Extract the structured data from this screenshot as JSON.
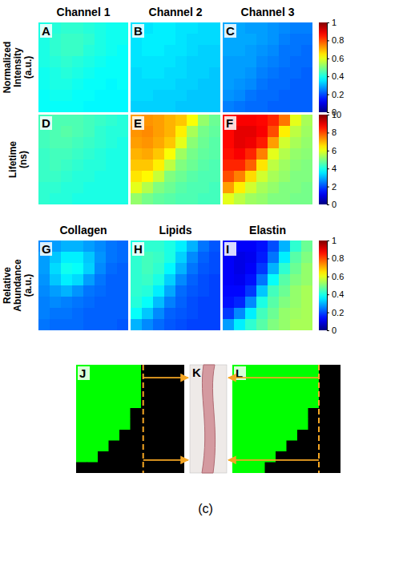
{
  "chart_data": [
    {
      "type": "heatmap",
      "title": "Channel 1",
      "label": "A",
      "zlim": [
        0,
        1
      ],
      "tick_labels": false,
      "z": [
        [
          0.4,
          0.41,
          0.42,
          0.42,
          0.41,
          0.4,
          0.39,
          0.39
        ],
        [
          0.4,
          0.42,
          0.43,
          0.43,
          0.42,
          0.4,
          0.39,
          0.39
        ],
        [
          0.4,
          0.42,
          0.43,
          0.43,
          0.41,
          0.4,
          0.39,
          0.38
        ],
        [
          0.4,
          0.41,
          0.42,
          0.41,
          0.4,
          0.39,
          0.38,
          0.38
        ],
        [
          0.39,
          0.4,
          0.41,
          0.4,
          0.39,
          0.38,
          0.38,
          0.38
        ],
        [
          0.39,
          0.4,
          0.4,
          0.39,
          0.38,
          0.38,
          0.37,
          0.38
        ],
        [
          0.38,
          0.39,
          0.39,
          0.38,
          0.38,
          0.37,
          0.37,
          0.37
        ],
        [
          0.38,
          0.38,
          0.38,
          0.38,
          0.37,
          0.37,
          0.37,
          0.37
        ]
      ]
    },
    {
      "type": "heatmap",
      "title": "Channel 2",
      "label": "B",
      "zlim": [
        0,
        1
      ],
      "tick_labels": false,
      "z": [
        [
          0.35,
          0.35,
          0.36,
          0.36,
          0.35,
          0.35,
          0.34,
          0.34
        ],
        [
          0.35,
          0.36,
          0.36,
          0.36,
          0.35,
          0.34,
          0.34,
          0.34
        ],
        [
          0.35,
          0.36,
          0.36,
          0.35,
          0.35,
          0.34,
          0.33,
          0.33
        ],
        [
          0.35,
          0.35,
          0.35,
          0.35,
          0.34,
          0.33,
          0.33,
          0.33
        ],
        [
          0.34,
          0.35,
          0.35,
          0.34,
          0.34,
          0.33,
          0.33,
          0.32
        ],
        [
          0.34,
          0.34,
          0.34,
          0.34,
          0.33,
          0.33,
          0.32,
          0.32
        ],
        [
          0.34,
          0.34,
          0.33,
          0.33,
          0.33,
          0.32,
          0.32,
          0.32
        ],
        [
          0.33,
          0.33,
          0.33,
          0.33,
          0.32,
          0.32,
          0.32,
          0.32
        ]
      ]
    },
    {
      "type": "heatmap",
      "title": "Channel 3",
      "label": "C",
      "zlim": [
        0,
        1
      ],
      "zticks": [
        0,
        0.2,
        0.4,
        0.6,
        0.8,
        1
      ],
      "tick_labels": false,
      "z": [
        [
          0.29,
          0.29,
          0.28,
          0.28,
          0.27,
          0.26,
          0.25,
          0.25
        ],
        [
          0.29,
          0.29,
          0.29,
          0.28,
          0.27,
          0.25,
          0.24,
          0.24
        ],
        [
          0.29,
          0.29,
          0.28,
          0.27,
          0.26,
          0.24,
          0.24,
          0.23
        ],
        [
          0.28,
          0.28,
          0.28,
          0.26,
          0.25,
          0.24,
          0.23,
          0.23
        ],
        [
          0.28,
          0.28,
          0.27,
          0.25,
          0.24,
          0.23,
          0.23,
          0.22
        ],
        [
          0.28,
          0.27,
          0.26,
          0.24,
          0.23,
          0.23,
          0.22,
          0.22
        ],
        [
          0.27,
          0.26,
          0.24,
          0.23,
          0.23,
          0.22,
          0.22,
          0.22
        ],
        [
          0.25,
          0.24,
          0.23,
          0.23,
          0.22,
          0.22,
          0.22,
          0.22
        ]
      ]
    },
    {
      "type": "heatmap",
      "label": "D",
      "zlim": [
        0,
        10
      ],
      "tick_labels": false,
      "z": [
        [
          4.4,
          4.5,
          4.5,
          4.5,
          4.4,
          4.3,
          4.2,
          4.1
        ],
        [
          4.4,
          4.5,
          4.6,
          4.5,
          4.4,
          4.2,
          4.1,
          4.1
        ],
        [
          4.4,
          4.5,
          4.5,
          4.4,
          4.3,
          4.2,
          4.1,
          4.0
        ],
        [
          4.3,
          4.4,
          4.4,
          4.3,
          4.2,
          4.1,
          4.0,
          4.0
        ],
        [
          4.3,
          4.4,
          4.3,
          4.2,
          4.1,
          4.1,
          4.0,
          4.0
        ],
        [
          4.3,
          4.3,
          4.2,
          4.1,
          4.1,
          4.0,
          4.0,
          4.0
        ],
        [
          4.2,
          4.2,
          4.1,
          4.1,
          4.0,
          4.0,
          4.0,
          4.0
        ],
        [
          4.2,
          4.1,
          4.1,
          4.0,
          4.0,
          4.0,
          4.0,
          4.0
        ]
      ]
    },
    {
      "type": "heatmap",
      "label": "E",
      "zlim": [
        0,
        10
      ],
      "tick_labels": false,
      "z": [
        [
          7.2,
          7.3,
          7.2,
          7.0,
          6.8,
          6.2,
          5.2,
          4.8
        ],
        [
          7.3,
          7.4,
          7.2,
          7.0,
          6.4,
          5.4,
          4.9,
          4.7
        ],
        [
          7.2,
          7.3,
          7.1,
          6.8,
          6.0,
          5.1,
          4.8,
          4.6
        ],
        [
          7.0,
          7.1,
          6.8,
          6.2,
          5.3,
          4.9,
          4.7,
          4.6
        ],
        [
          6.8,
          6.8,
          6.4,
          5.6,
          5.0,
          4.8,
          4.6,
          4.5
        ],
        [
          6.5,
          6.3,
          5.7,
          5.0,
          4.8,
          4.6,
          4.5,
          4.5
        ],
        [
          6.0,
          5.5,
          5.0,
          4.8,
          4.6,
          4.5,
          4.5,
          4.4
        ],
        [
          5.2,
          4.9,
          4.7,
          4.6,
          4.5,
          4.5,
          4.4,
          4.4
        ]
      ]
    },
    {
      "type": "heatmap",
      "label": "F",
      "zlim": [
        0,
        10
      ],
      "zticks": [
        0,
        2,
        4,
        6,
        8,
        10
      ],
      "tick_labels": false,
      "z": [
        [
          8.6,
          8.8,
          8.8,
          8.7,
          8.4,
          7.6,
          6.0,
          5.4
        ],
        [
          8.7,
          9.0,
          9.0,
          8.8,
          8.0,
          6.4,
          5.6,
          5.3
        ],
        [
          8.7,
          9.0,
          8.9,
          8.5,
          7.2,
          5.8,
          5.4,
          5.2
        ],
        [
          8.6,
          8.8,
          8.4,
          7.5,
          6.0,
          5.5,
          5.2,
          5.1
        ],
        [
          8.4,
          8.4,
          7.8,
          6.5,
          5.6,
          5.3,
          5.1,
          5.0
        ],
        [
          8.0,
          7.5,
          6.6,
          5.8,
          5.4,
          5.2,
          5.0,
          5.0
        ],
        [
          7.2,
          6.4,
          5.8,
          5.4,
          5.2,
          5.0,
          5.0,
          4.9
        ],
        [
          6.0,
          5.6,
          5.3,
          5.2,
          5.0,
          5.0,
          4.9,
          4.9
        ]
      ]
    },
    {
      "type": "heatmap",
      "title": "Collagen",
      "label": "G",
      "zlim": [
        0,
        1
      ],
      "tick_labels": false,
      "z": [
        [
          0.26,
          0.28,
          0.3,
          0.3,
          0.28,
          0.26,
          0.24,
          0.23
        ],
        [
          0.28,
          0.32,
          0.36,
          0.36,
          0.32,
          0.27,
          0.24,
          0.23
        ],
        [
          0.28,
          0.34,
          0.39,
          0.38,
          0.33,
          0.26,
          0.23,
          0.22
        ],
        [
          0.27,
          0.32,
          0.36,
          0.34,
          0.28,
          0.24,
          0.22,
          0.22
        ],
        [
          0.26,
          0.28,
          0.3,
          0.27,
          0.24,
          0.23,
          0.22,
          0.22
        ],
        [
          0.25,
          0.26,
          0.25,
          0.24,
          0.23,
          0.22,
          0.22,
          0.22
        ],
        [
          0.25,
          0.24,
          0.24,
          0.23,
          0.22,
          0.22,
          0.22,
          0.22
        ],
        [
          0.24,
          0.23,
          0.23,
          0.23,
          0.22,
          0.22,
          0.22,
          0.21
        ]
      ]
    },
    {
      "type": "heatmap",
      "title": "Lipids",
      "label": "H",
      "zlim": [
        0,
        1
      ],
      "tick_labels": false,
      "z": [
        [
          0.4,
          0.42,
          0.42,
          0.4,
          0.36,
          0.3,
          0.24,
          0.21
        ],
        [
          0.42,
          0.44,
          0.43,
          0.4,
          0.33,
          0.26,
          0.22,
          0.2
        ],
        [
          0.42,
          0.44,
          0.42,
          0.37,
          0.3,
          0.24,
          0.21,
          0.2
        ],
        [
          0.42,
          0.43,
          0.4,
          0.33,
          0.26,
          0.22,
          0.2,
          0.19
        ],
        [
          0.42,
          0.41,
          0.36,
          0.29,
          0.23,
          0.21,
          0.2,
          0.19
        ],
        [
          0.41,
          0.38,
          0.31,
          0.25,
          0.22,
          0.2,
          0.19,
          0.19
        ],
        [
          0.38,
          0.32,
          0.26,
          0.22,
          0.21,
          0.2,
          0.19,
          0.19
        ],
        [
          0.3,
          0.26,
          0.23,
          0.21,
          0.2,
          0.19,
          0.19,
          0.19
        ]
      ]
    },
    {
      "type": "heatmap",
      "title": "Elastin",
      "label": "I",
      "zlim": [
        0,
        1
      ],
      "zticks": [
        0,
        0.2,
        0.4,
        0.6,
        0.8,
        1
      ],
      "tick_labels": false,
      "z": [
        [
          0.14,
          0.12,
          0.12,
          0.14,
          0.2,
          0.3,
          0.42,
          0.48
        ],
        [
          0.12,
          0.1,
          0.11,
          0.15,
          0.24,
          0.36,
          0.46,
          0.5
        ],
        [
          0.12,
          0.1,
          0.12,
          0.18,
          0.3,
          0.42,
          0.48,
          0.52
        ],
        [
          0.12,
          0.11,
          0.14,
          0.24,
          0.38,
          0.46,
          0.5,
          0.52
        ],
        [
          0.13,
          0.13,
          0.18,
          0.32,
          0.44,
          0.48,
          0.52,
          0.54
        ],
        [
          0.14,
          0.16,
          0.26,
          0.4,
          0.46,
          0.5,
          0.52,
          0.54
        ],
        [
          0.18,
          0.26,
          0.36,
          0.44,
          0.48,
          0.52,
          0.53,
          0.54
        ],
        [
          0.28,
          0.36,
          0.42,
          0.46,
          0.5,
          0.52,
          0.54,
          0.54
        ]
      ]
    },
    {
      "type": "heatmap",
      "label": "J",
      "color": "#00ff00",
      "tick_labels": false,
      "z": [
        [
          1,
          1,
          1,
          1,
          1,
          1,
          0,
          0,
          0,
          0
        ],
        [
          1,
          1,
          1,
          1,
          1,
          1,
          0,
          0,
          0,
          0
        ],
        [
          1,
          1,
          1,
          1,
          1,
          1,
          0,
          0,
          0,
          0
        ],
        [
          1,
          1,
          1,
          1,
          1,
          1,
          0,
          0,
          0,
          0
        ],
        [
          1,
          1,
          1,
          1,
          1,
          0,
          0,
          0,
          0,
          0
        ],
        [
          1,
          1,
          1,
          1,
          1,
          0,
          0,
          0,
          0,
          0
        ],
        [
          1,
          1,
          1,
          1,
          0,
          0,
          0,
          0,
          0,
          0
        ],
        [
          1,
          1,
          1,
          0,
          0,
          0,
          0,
          0,
          0,
          0
        ],
        [
          1,
          1,
          0,
          0,
          0,
          0,
          0,
          0,
          0,
          0
        ],
        [
          0,
          0,
          0,
          0,
          0,
          0,
          0,
          0,
          0,
          0
        ]
      ]
    },
    {
      "type": "heatmap",
      "label": "L",
      "color": "#00ff00",
      "tick_labels": false,
      "z": [
        [
          1,
          1,
          1,
          1,
          1,
          1,
          1,
          1,
          0,
          0
        ],
        [
          1,
          1,
          1,
          1,
          1,
          1,
          1,
          1,
          0,
          0
        ],
        [
          1,
          1,
          1,
          1,
          1,
          1,
          1,
          1,
          0,
          0
        ],
        [
          1,
          1,
          1,
          1,
          1,
          1,
          1,
          1,
          0,
          0
        ],
        [
          1,
          1,
          1,
          1,
          1,
          1,
          1,
          0,
          0,
          0
        ],
        [
          1,
          1,
          1,
          1,
          1,
          1,
          1,
          0,
          0,
          0
        ],
        [
          1,
          1,
          1,
          1,
          1,
          1,
          0,
          0,
          0,
          0
        ],
        [
          1,
          1,
          1,
          1,
          1,
          0,
          0,
          0,
          0,
          0
        ],
        [
          1,
          1,
          1,
          1,
          0,
          0,
          0,
          0,
          0,
          0
        ],
        [
          1,
          1,
          1,
          0,
          0,
          0,
          0,
          0,
          0,
          0
        ]
      ]
    }
  ],
  "figure": {
    "row_labels": [
      "Normalized Intensity (a.u.)",
      "Lifetime (ns)",
      "Relative Abundance (a.u.)"
    ],
    "image_label": "K",
    "caption": "(c)"
  }
}
